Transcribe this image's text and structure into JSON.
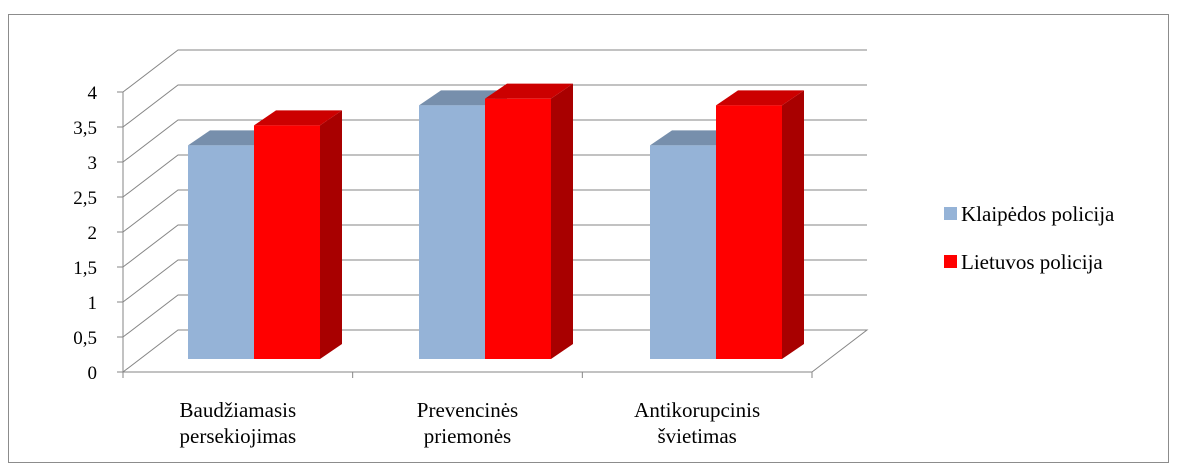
{
  "chart_data": {
    "type": "bar",
    "categories": [
      [
        "Baudžiamasis",
        "persekiojimas"
      ],
      [
        "Prevencinės",
        "priemonės"
      ],
      [
        "Antikorupcinis",
        "švietimas"
      ]
    ],
    "series": [
      {
        "name": "Klaipėdos policija",
        "values": [
          3.2,
          3.8,
          3.2
        ],
        "color": "#95b3d7"
      },
      {
        "name": "Lietuvos policija",
        "values": [
          3.5,
          3.9,
          3.8
        ],
        "color": "#ff0000"
      }
    ],
    "ylim": [
      0,
      4
    ],
    "yticks": [
      "0",
      "0,5",
      "1",
      "1,5",
      "2",
      "2,5",
      "3",
      "3,5",
      "4"
    ],
    "grid": true,
    "legend_position": "right"
  }
}
